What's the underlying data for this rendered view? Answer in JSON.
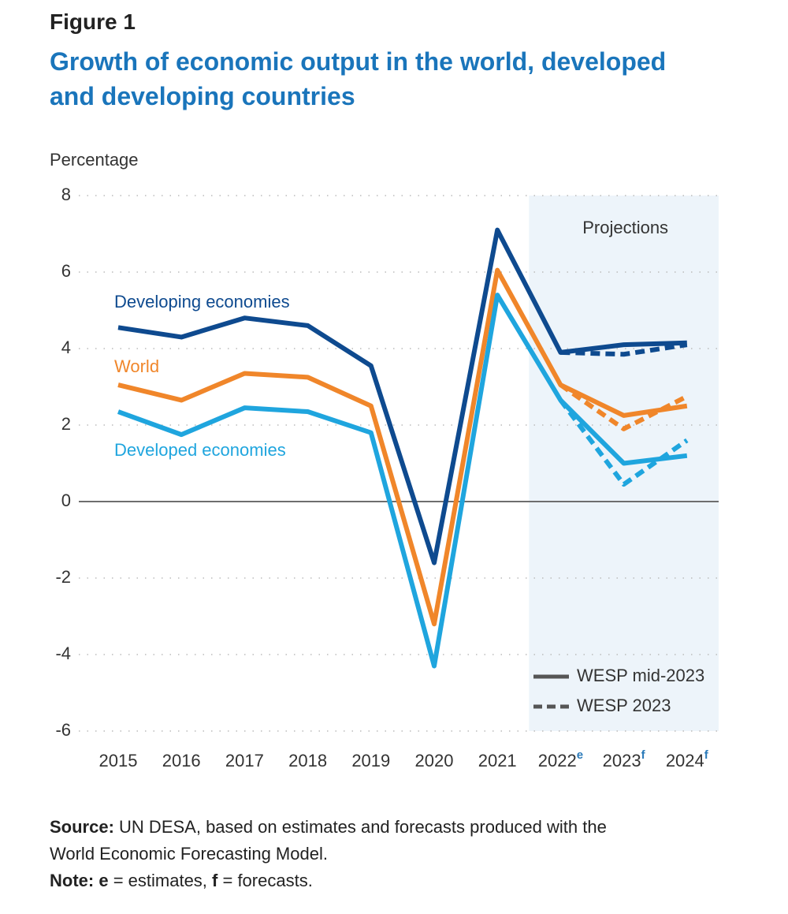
{
  "chart_data": {
    "type": "line",
    "figure_label": "Figure 1",
    "title_lines": [
      "Growth of economic output in the world, developed",
      "and developing countries"
    ],
    "y_axis_label": "Percentage",
    "annotation": "Projections",
    "categories": [
      "2015",
      "2016",
      "2017",
      "2018",
      "2019",
      "2020",
      "2021",
      "2022",
      "2023",
      "2024"
    ],
    "category_marks": [
      null,
      null,
      null,
      null,
      null,
      null,
      null,
      "e",
      "f",
      "f"
    ],
    "projection_start": 7,
    "ylim": [
      -6,
      8
    ],
    "yticks": [
      -6,
      -4,
      -2,
      0,
      2,
      4,
      6,
      8
    ],
    "grid": true,
    "legend": [
      {
        "name": "WESP mid-2023",
        "dashed": false,
        "color": "#555555"
      },
      {
        "name": "WESP 2023",
        "dashed": true,
        "color": "#555555"
      }
    ],
    "series": [
      {
        "name": "Developing economies",
        "color": "#0e4a8f",
        "values": [
          4.55,
          4.3,
          4.8,
          4.6,
          3.55,
          -1.6,
          7.1,
          3.9,
          4.1,
          4.15
        ],
        "dashed_values": [
          null,
          null,
          null,
          null,
          null,
          null,
          null,
          3.9,
          3.85,
          4.1
        ]
      },
      {
        "name": "World",
        "color": "#f0862a",
        "values": [
          3.05,
          2.65,
          3.35,
          3.25,
          2.5,
          -3.2,
          6.05,
          3.05,
          2.25,
          2.5
        ],
        "dashed_values": [
          null,
          null,
          null,
          null,
          null,
          null,
          null,
          3.05,
          1.9,
          2.75
        ]
      },
      {
        "name": "Developed economies",
        "color": "#1fa5de",
        "values": [
          2.35,
          1.75,
          2.45,
          2.35,
          1.8,
          -4.3,
          5.4,
          2.65,
          1.0,
          1.2
        ],
        "dashed_values": [
          null,
          null,
          null,
          null,
          null,
          null,
          null,
          2.65,
          0.45,
          1.6
        ]
      }
    ],
    "source_label": "Source:",
    "source_lines": [
      "UN DESA, based on estimates and forecasts produced with the",
      "World Economic Forecasting Model."
    ],
    "note_label": "Note:",
    "note_parts": [
      "e",
      " = estimates, ",
      "f",
      " = forecasts."
    ]
  }
}
